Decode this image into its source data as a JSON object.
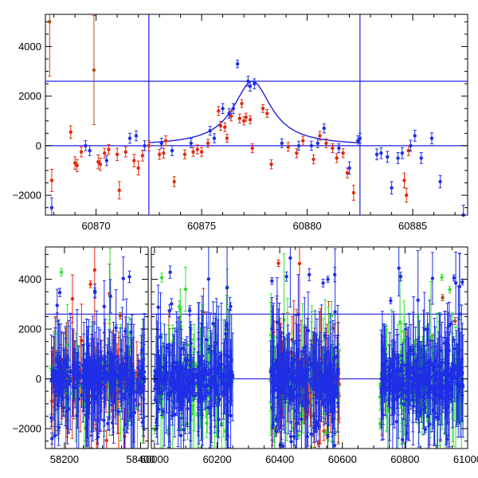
{
  "colors": {
    "blue": "#1f2ee6",
    "red": "#e02a10",
    "dark_red": "#b04a18",
    "green": "#33dd33",
    "ref_line": "#1f1fe0"
  },
  "chart_data": [
    {
      "type": "scatter",
      "panel": "top",
      "title": "",
      "xlabel": "",
      "ylabel": "",
      "xlim": [
        60867.6,
        60887.6
      ],
      "ylim": [
        -2800,
        5300
      ],
      "x_ticks": [
        60870,
        60875,
        60880,
        60885
      ],
      "y_ticks": [
        -2000,
        0,
        2000,
        4000
      ],
      "x_minor_step": 1,
      "y_minor_step": 500,
      "hlines": [
        0,
        2600
      ],
      "vlines": [
        60872.5,
        60882.5
      ],
      "model_curve": {
        "kind": "lorentzian",
        "center": 60877.4,
        "peak": 2600,
        "half_width": 1.1,
        "color": "blue"
      },
      "series": [
        {
          "color": "red",
          "points": [
            [
              60867.8,
              5000,
              2200
            ],
            [
              60867.9,
              -1400,
              450
            ],
            [
              60868.8,
              550,
              250
            ],
            [
              60869.0,
              -700,
              250
            ],
            [
              60869.1,
              -800,
              250
            ],
            [
              60869.3,
              -250,
              200
            ],
            [
              60869.9,
              3050,
              2200
            ],
            [
              60870.1,
              -650,
              280
            ],
            [
              60870.2,
              -750,
              250
            ],
            [
              60870.4,
              -300,
              200
            ],
            [
              60870.6,
              -150,
              200
            ],
            [
              60871.0,
              -350,
              250
            ],
            [
              60871.1,
              -1800,
              350
            ],
            [
              60871.4,
              -250,
              200
            ],
            [
              60871.8,
              -600,
              250
            ],
            [
              60872.0,
              -900,
              280
            ],
            [
              60872.2,
              -400,
              220
            ],
            [
              60872.5,
              0,
              200
            ],
            [
              60873.0,
              -350,
              200
            ],
            [
              60873.2,
              -300,
              200
            ],
            [
              60873.3,
              200,
              200
            ],
            [
              60873.7,
              -1450,
              200
            ],
            [
              60874.2,
              -350,
              180
            ],
            [
              60874.6,
              -250,
              180
            ],
            [
              60874.8,
              -150,
              180
            ],
            [
              60875.0,
              -250,
              180
            ],
            [
              60875.3,
              100,
              160
            ],
            [
              60875.8,
              1400,
              180
            ],
            [
              60875.9,
              800,
              180
            ],
            [
              60876.1,
              750,
              180
            ],
            [
              60876.2,
              300,
              160
            ],
            [
              60876.4,
              1200,
              200
            ],
            [
              60876.8,
              1100,
              180
            ],
            [
              60876.9,
              1700,
              160
            ],
            [
              60877.0,
              1000,
              160
            ],
            [
              60877.1,
              1150,
              160
            ],
            [
              60877.3,
              1050,
              160
            ],
            [
              60877.4,
              -100,
              180
            ],
            [
              60877.9,
              1500,
              160
            ],
            [
              60878.1,
              1300,
              160
            ],
            [
              60878.3,
              -750,
              180
            ],
            [
              60879.1,
              -50,
              180
            ],
            [
              60879.5,
              -300,
              180
            ],
            [
              60879.8,
              200,
              180
            ],
            [
              60880.3,
              -550,
              180
            ],
            [
              60880.6,
              400,
              180
            ],
            [
              60880.9,
              100,
              180
            ],
            [
              60881.2,
              -100,
              180
            ],
            [
              60881.4,
              -500,
              180
            ],
            [
              60881.7,
              -300,
              180
            ],
            [
              60881.9,
              -1100,
              200
            ],
            [
              60882.2,
              -1900,
              300
            ],
            [
              60884.6,
              -1400,
              300
            ],
            [
              60884.8,
              -200,
              200
            ],
            [
              60884.7,
              -2000,
              280
            ]
          ]
        },
        {
          "color": "blue",
          "points": [
            [
              60867.9,
              -2500,
              400
            ],
            [
              60869.5,
              0,
              200
            ],
            [
              60869.7,
              -200,
              200
            ],
            [
              60870.5,
              -600,
              200
            ],
            [
              60871.6,
              300,
              200
            ],
            [
              60871.9,
              400,
              200
            ],
            [
              60872.3,
              0,
              200
            ],
            [
              60873.1,
              100,
              200
            ],
            [
              60873.6,
              -200,
              200
            ],
            [
              60874.5,
              100,
              180
            ],
            [
              60875.4,
              600,
              180
            ],
            [
              60875.6,
              300,
              180
            ],
            [
              60876.0,
              1500,
              200
            ],
            [
              60876.3,
              1300,
              200
            ],
            [
              60876.5,
              1500,
              200
            ],
            [
              60876.7,
              3300,
              150
            ],
            [
              60877.2,
              2600,
              200
            ],
            [
              60877.3,
              2400,
              200
            ],
            [
              60877.5,
              2500,
              200
            ],
            [
              60878.8,
              100,
              180
            ],
            [
              60879.6,
              0,
              180
            ],
            [
              60880.2,
              0,
              180
            ],
            [
              60880.5,
              100,
              180
            ],
            [
              60880.8,
              700,
              180
            ],
            [
              60881.5,
              -100,
              180
            ],
            [
              60882.4,
              200,
              200
            ],
            [
              60882.5,
              300,
              200
            ],
            [
              60882.0,
              -900,
              250
            ],
            [
              60883.3,
              -350,
              220
            ],
            [
              60883.5,
              -300,
              220
            ],
            [
              60883.8,
              -450,
              220
            ],
            [
              60884.0,
              -1700,
              250
            ],
            [
              60884.3,
              -500,
              220
            ],
            [
              60884.5,
              -300,
              220
            ],
            [
              60884.9,
              0,
              220
            ],
            [
              60885.1,
              400,
              220
            ],
            [
              60885.4,
              -500,
              220
            ],
            [
              60885.9,
              300,
              220
            ],
            [
              60886.3,
              -1450,
              250
            ],
            [
              60887.4,
              -2800,
              400
            ]
          ]
        }
      ]
    },
    {
      "type": "scatter",
      "panel": "bottom",
      "title": "",
      "xlabel": "",
      "ylabel": "",
      "x_segments": [
        {
          "xlim": [
            58150,
            58420
          ],
          "x_ticks": [
            58200,
            58400
          ]
        },
        {
          "xlim": [
            59990,
            61000
          ],
          "x_ticks": [
            60000,
            60200,
            60400,
            60600,
            60800,
            61000
          ]
        }
      ],
      "ylim": [
        -2800,
        5300
      ],
      "y_ticks": [
        -2000,
        0,
        2000,
        4000
      ],
      "y_minor_step": 500,
      "hlines": [
        0,
        2600
      ],
      "clusters": [
        {
          "segment": 0,
          "x_range": [
            58165,
            58410
          ],
          "y_spread": 900,
          "counts": {
            "red": 120,
            "green": 60,
            "blue": 320
          }
        },
        {
          "segment": 1,
          "x_range": [
            60000,
            60250
          ],
          "y_spread": 900,
          "counts": {
            "red": 10,
            "green": 160,
            "blue": 300
          }
        },
        {
          "segment": 1,
          "x_range": [
            60370,
            60590
          ],
          "y_spread": 1000,
          "counts": {
            "red": 160,
            "green": 90,
            "blue": 320
          }
        },
        {
          "segment": 1,
          "x_range": [
            60720,
            60985
          ],
          "y_spread": 900,
          "counts": {
            "red": 20,
            "green": 180,
            "blue": 340
          }
        }
      ]
    }
  ]
}
